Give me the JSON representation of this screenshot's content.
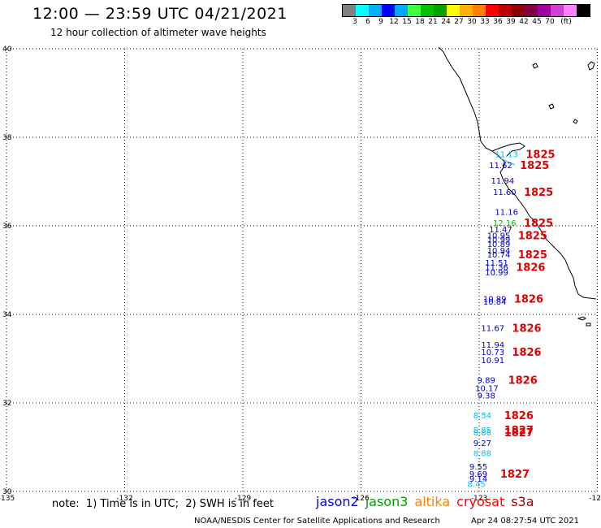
{
  "header": {
    "title": "12:00 — 23:59 UTC 04/21/2021",
    "subtitle": "12 hour collection of altimeter wave heights"
  },
  "legend": {
    "unit": "(ft)",
    "colors": [
      "#808080",
      "#00ffff",
      "#00b0ff",
      "#0000ff",
      "#00a8ff",
      "#40ff40",
      "#00c000",
      "#00a000",
      "#ffff00",
      "#ffb000",
      "#ff8000",
      "#ff0000",
      "#c00000",
      "#900000",
      "#800040",
      "#a000a0",
      "#d040d0",
      "#ff80ff",
      "#000000"
    ],
    "ticks": [
      "3",
      "6",
      "9",
      "12",
      "15",
      "18",
      "21",
      "24",
      "27",
      "30",
      "33",
      "36",
      "39",
      "42",
      "45",
      "70"
    ]
  },
  "map": {
    "lat_labels": [
      "40",
      "38",
      "36",
      "34",
      "32",
      "30"
    ],
    "lon_labels": [
      "-135",
      "-132",
      "-129",
      "-126",
      "-123",
      "-120"
    ],
    "lat_values": [
      40,
      38,
      36,
      34,
      32,
      30
    ],
    "lon_values": [
      -135,
      -132,
      -129,
      -126,
      -123,
      -120
    ]
  },
  "observations": [
    {
      "lat": 37.55,
      "lon": -122.6,
      "swh": "11.13",
      "color": "#00c0ff",
      "time": "1825"
    },
    {
      "lat": 37.3,
      "lon": -122.75,
      "swh": "11.62",
      "color": "#0000d0",
      "time": "1825"
    },
    {
      "lat": 36.95,
      "lon": -122.7,
      "swh": "11.94",
      "color": "#0000d0"
    },
    {
      "lat": 36.7,
      "lon": -122.65,
      "swh": "11.60",
      "color": "#0000d0",
      "time": "1825"
    },
    {
      "lat": 36.25,
      "lon": -122.6,
      "swh": "11.16",
      "color": "#0000d0"
    },
    {
      "lat": 36.0,
      "lon": -122.65,
      "swh": "12.16",
      "color": "#00c000",
      "time": "1825"
    },
    {
      "lat": 35.85,
      "lon": -122.75,
      "swh": "11.47",
      "color": "#0000d0"
    },
    {
      "lat": 35.72,
      "lon": -122.8,
      "swh": "10.95",
      "color": "#0000d0",
      "time": "1825"
    },
    {
      "lat": 35.62,
      "lon": -122.8,
      "swh": "10.99",
      "color": "#0000d0"
    },
    {
      "lat": 35.52,
      "lon": -122.8,
      "swh": "10.89",
      "color": "#0000d0"
    },
    {
      "lat": 35.38,
      "lon": -122.8,
      "swh": "10.94",
      "color": "#0000d0"
    },
    {
      "lat": 35.28,
      "lon": -122.8,
      "swh": "10.74",
      "color": "#0000d0",
      "time": "1825"
    },
    {
      "lat": 35.1,
      "lon": -122.85,
      "swh": "11.51",
      "color": "#0000d0"
    },
    {
      "lat": 35.0,
      "lon": -122.85,
      "swh": "11.36",
      "color": "#0000d0",
      "time": "1826"
    },
    {
      "lat": 34.88,
      "lon": -122.85,
      "swh": "10.99",
      "color": "#0000d0"
    },
    {
      "lat": 34.28,
      "lon": -122.9,
      "swh": "10.89",
      "color": "#0000d0",
      "time": "1826"
    },
    {
      "lat": 34.22,
      "lon": -122.9,
      "swh": "10.84",
      "color": "#0000d0"
    },
    {
      "lat": 33.62,
      "lon": -122.95,
      "swh": "11.67",
      "color": "#0000d0",
      "time": "1826"
    },
    {
      "lat": 33.25,
      "lon": -122.95,
      "swh": "11.94",
      "color": "#0000d0"
    },
    {
      "lat": 33.08,
      "lon": -122.95,
      "swh": "10.73",
      "color": "#0000d0",
      "time": "1826"
    },
    {
      "lat": 32.9,
      "lon": -122.95,
      "swh": "10.91",
      "color": "#0000d0"
    },
    {
      "lat": 32.45,
      "lon": -123.05,
      "swh": "9.89",
      "color": "#0000d0",
      "time": "1826"
    },
    {
      "lat": 32.27,
      "lon": -123.1,
      "swh": "10.17",
      "color": "#0000d0"
    },
    {
      "lat": 32.1,
      "lon": -123.05,
      "swh": "9.38",
      "color": "#0000d0"
    },
    {
      "lat": 31.65,
      "lon": -123.15,
      "swh": "8.54",
      "color": "#00c0ff",
      "time": "1826"
    },
    {
      "lat": 31.32,
      "lon": -123.15,
      "swh": "8.85",
      "color": "#00c0ff",
      "time": "1827"
    },
    {
      "lat": 31.27,
      "lon": -123.15,
      "swh": "8.88",
      "color": "#00c0ff",
      "time": "1827"
    },
    {
      "lat": 31.03,
      "lon": -123.15,
      "swh": "9.27",
      "color": "#0000d0"
    },
    {
      "lat": 30.8,
      "lon": -123.15,
      "swh": "8.88",
      "color": "#00c0ff"
    },
    {
      "lat": 30.5,
      "lon": -123.25,
      "swh": "9.55",
      "color": "#0000d0"
    },
    {
      "lat": 30.33,
      "lon": -123.25,
      "swh": "9.69",
      "color": "#0000d0",
      "time": "1827"
    },
    {
      "lat": 30.22,
      "lon": -123.25,
      "swh": "9.14",
      "color": "#0000d0"
    },
    {
      "lat": 30.1,
      "lon": -123.3,
      "swh": "8.45",
      "color": "#00c0ff"
    }
  ],
  "footer": {
    "note": "note:  1) Time is in UTC;  2) SWH is in feet",
    "satellites": [
      {
        "name": "jason2",
        "color": "#0000ff"
      },
      {
        "name": "jason3",
        "color": "#00a000"
      },
      {
        "name": "altika",
        "color": "#ff8000"
      },
      {
        "name": "cryosat",
        "color": "#ff0000"
      },
      {
        "name": "s3a",
        "color": "#a00000"
      }
    ],
    "credit": "NOAA/NESDIS Center for Satellite Applications and Research",
    "timestamp": "Apr 24 08:27:54 UTC 2021"
  }
}
